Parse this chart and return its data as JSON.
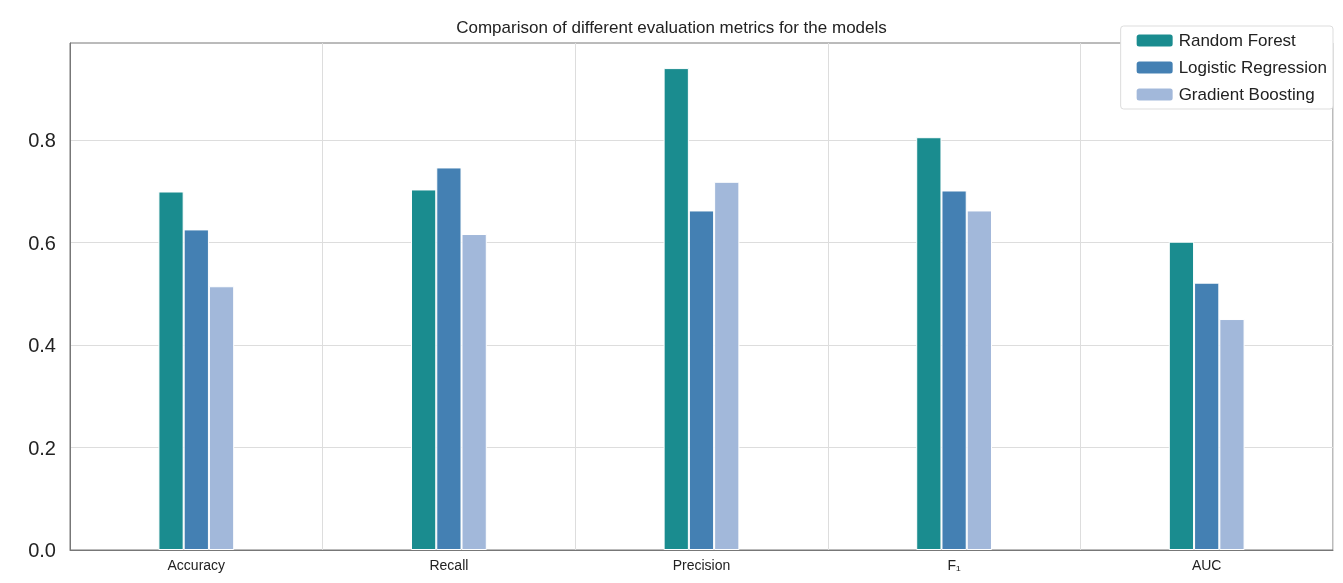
{
  "chart_data": {
    "type": "bar",
    "title": "Comparison of different evaluation metrics for the models",
    "categories": [
      "Accuracy",
      "Recall",
      "Precision",
      "F₁",
      "AUC"
    ],
    "series": [
      {
        "name": "Random Forest",
        "color": "#1a8c8f",
        "values": [
          0.7,
          0.704,
          0.941,
          0.806,
          0.602
        ]
      },
      {
        "name": "Logistic Regression",
        "color": "#4480b3",
        "values": [
          0.626,
          0.747,
          0.663,
          0.702,
          0.522
        ]
      },
      {
        "name": "Gradient Boosting",
        "color": "#a2b8da",
        "values": [
          0.515,
          0.617,
          0.719,
          0.663,
          0.451
        ]
      }
    ],
    "ylim": [
      0,
      0.99
    ],
    "yticks": [
      {
        "value": 0,
        "label": "0.0"
      },
      {
        "value": 0.2,
        "label": "0.2"
      },
      {
        "value": 0.4,
        "label": "0.4"
      },
      {
        "value": 0.6,
        "label": "0.6"
      },
      {
        "value": 0.8,
        "label": "0.8"
      }
    ],
    "grid": true,
    "legend": "top right"
  }
}
